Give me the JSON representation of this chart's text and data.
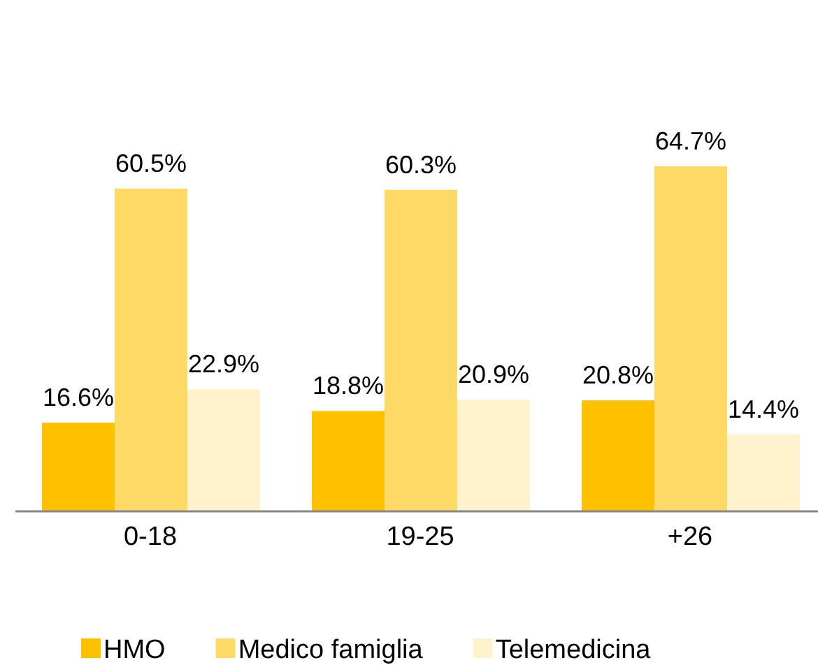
{
  "chart_data": {
    "type": "bar",
    "categories": [
      "0-18",
      "19-25",
      "+26"
    ],
    "tick_labels": "x",
    "legend": "bottom",
    "series": [
      {
        "name": "HMO",
        "color": "#ffc000",
        "values": [
          16.6,
          18.8,
          20.8
        ],
        "value_labels": [
          "16.6%",
          "18.8%",
          "20.8%"
        ]
      },
      {
        "name": "Medico famiglia",
        "color": "#ffd966",
        "values": [
          60.5,
          60.3,
          64.7
        ],
        "value_labels": [
          "60.5%",
          "60.3%",
          "64.7%"
        ]
      },
      {
        "name": "Telemedicina",
        "color": "#fff2cc",
        "values": [
          22.9,
          20.9,
          14.4
        ],
        "value_labels": [
          "22.9%",
          "20.9%",
          "14.4%"
        ]
      }
    ]
  }
}
